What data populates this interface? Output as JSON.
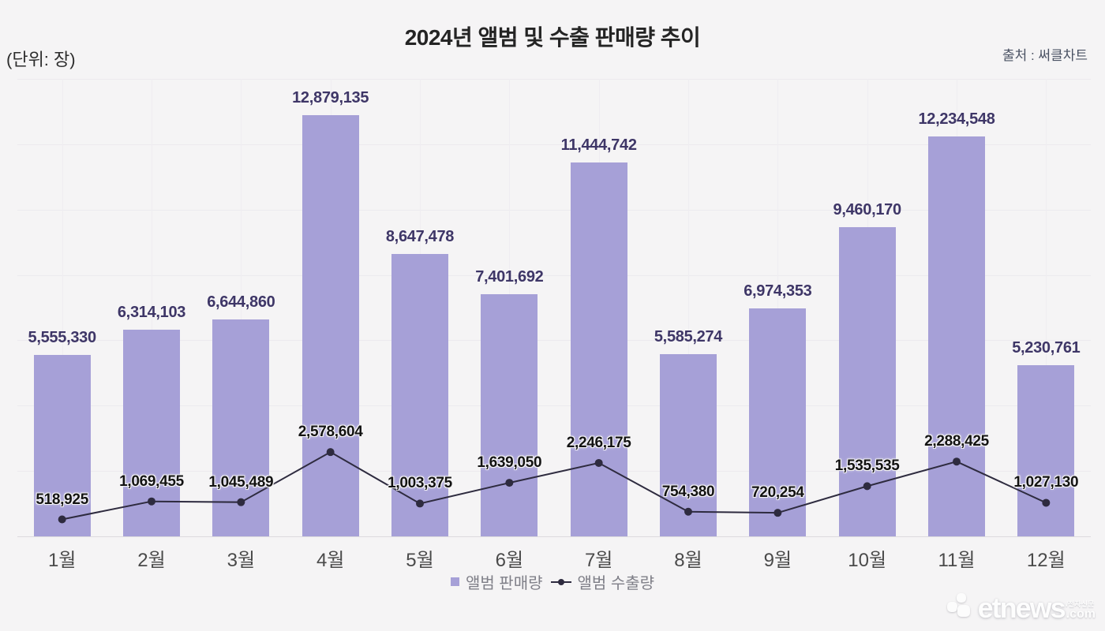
{
  "header": {
    "title": "2024년 앨범 및 수출 판매량 추이",
    "unit_label": "(단위: 장)",
    "source_label": "출처 : 써클차트"
  },
  "legend": {
    "bar_label": "앨범 판매량",
    "line_label": "앨범 수출량"
  },
  "watermark": {
    "logo_text": "etnews",
    "logo_com": ".com",
    "logo_small": "/전자신문"
  },
  "colors": {
    "background": "#f5f4f5",
    "bar": "#a6a0d7",
    "line": "#2e2b3f",
    "bar_value_label": "#3e3667",
    "line_value_label": "#131313",
    "grid": "#eceaee",
    "axis": "#dcdade",
    "x_axis_label": "#4a4a4a",
    "legend_text": "#7f7f88"
  },
  "chart_data": {
    "type": "bar",
    "subtype": "bar+line combo",
    "title": "2024년 앨범 및 수출 판매량 추이",
    "xlabel": "",
    "ylabel": "(단위: 장)",
    "categories": [
      "1월",
      "2월",
      "3월",
      "4월",
      "5월",
      "6월",
      "7월",
      "8월",
      "9월",
      "10월",
      "11월",
      "12월"
    ],
    "series": [
      {
        "name": "앨범 판매량",
        "type": "bar",
        "values": [
          5555330,
          6314103,
          6644860,
          12879135,
          8647478,
          7401692,
          11444742,
          5585274,
          6974353,
          9460170,
          12234548,
          5230761
        ]
      },
      {
        "name": "앨범 수출량",
        "type": "line",
        "values": [
          518925,
          1069455,
          1045489,
          2578604,
          1003375,
          1639050,
          2246175,
          754380,
          720254,
          1535535,
          2288425,
          1027130
        ]
      }
    ],
    "ylim": [
      0,
      14000000
    ],
    "grid_interval": 2000000,
    "grid": true,
    "y_tick_labels_visible": false,
    "data_labels_visible": true,
    "legend_position": "bottom"
  }
}
